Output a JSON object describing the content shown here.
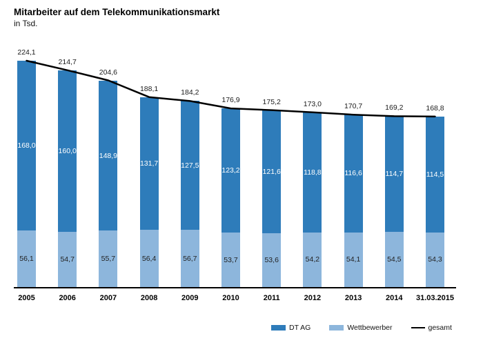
{
  "header": {
    "title": "Mitarbeiter auf dem Telekommunikationsmarkt",
    "subtitle": "in Tsd."
  },
  "chart_data": {
    "type": "bar",
    "stacked": true,
    "decimal_separator": ",",
    "gridlines": false,
    "y_axis_visible": false,
    "legend_position": "bottom-right",
    "stack_order_bottom_to_top": [
      "Wettbewerber",
      "DT AG"
    ],
    "categories": [
      "2005",
      "2006",
      "2007",
      "2008",
      "2009",
      "2010",
      "2011",
      "2012",
      "2013",
      "2014",
      "31.03.2015"
    ],
    "series": [
      {
        "name": "DT AG",
        "color": "#2E7CBA",
        "label_color": "#ffffff",
        "values": [
          168.0,
          160.0,
          148.9,
          131.7,
          127.5,
          123.2,
          121.6,
          118.8,
          116.6,
          114.7,
          114.5
        ],
        "value_labels": [
          "168,0",
          "160,0",
          "148,9",
          "131,7",
          "127,5",
          "123,2",
          "121,6",
          "118,8",
          "116,6",
          "114,7",
          "114,5"
        ]
      },
      {
        "name": "Wettbewerber",
        "color": "#8DB6DC",
        "label_color": "#222222",
        "values": [
          56.1,
          54.7,
          55.7,
          56.4,
          56.7,
          53.7,
          53.6,
          54.2,
          54.1,
          54.5,
          54.3
        ],
        "value_labels": [
          "56,1",
          "54,7",
          "55,7",
          "56,4",
          "56,7",
          "53,7",
          "53,6",
          "54,2",
          "54,1",
          "54,5",
          "54,3"
        ]
      }
    ],
    "line_series": {
      "name": "gesamt",
      "color": "#000000",
      "values": [
        224.1,
        214.7,
        204.6,
        188.1,
        184.2,
        176.9,
        175.2,
        173.0,
        170.7,
        169.2,
        168.8
      ],
      "value_labels": [
        "224,1",
        "214,7",
        "204,6",
        "188,1",
        "184,2",
        "176,9",
        "175,2",
        "173,0",
        "170,7",
        "169,2",
        "168,8"
      ]
    }
  },
  "legend": {
    "items": [
      {
        "label": "DT AG",
        "swatch": "rect",
        "color": "#2E7CBA"
      },
      {
        "label": "Wettbewerber",
        "swatch": "rect",
        "color": "#8DB6DC"
      },
      {
        "label": "gesamt",
        "swatch": "line",
        "color": "#000000"
      }
    ]
  }
}
